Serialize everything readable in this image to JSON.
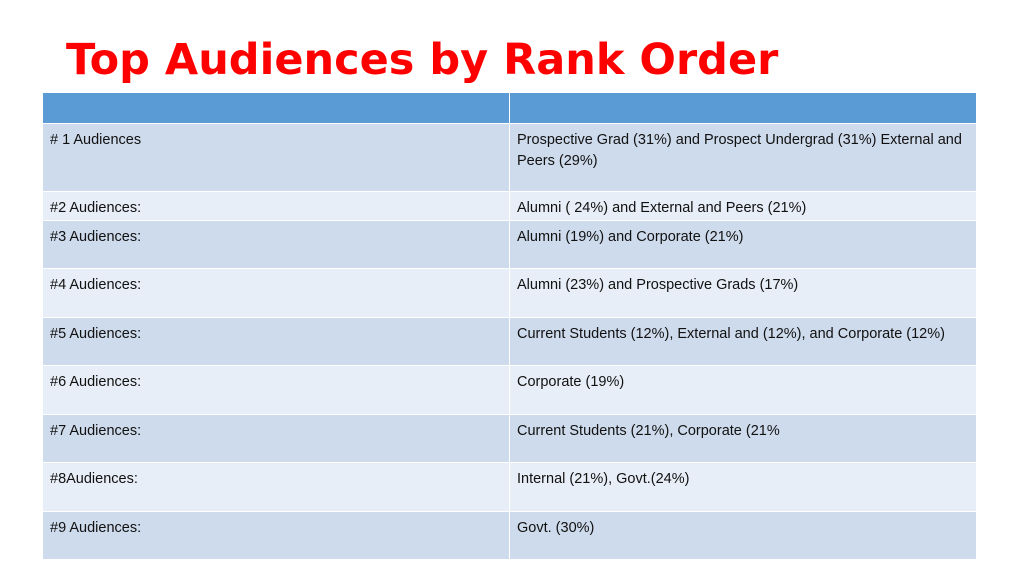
{
  "title": "Top Audiences by Rank Order",
  "table": {
    "headers": [
      "",
      ""
    ],
    "rows": [
      {
        "rank": "# 1 Audiences",
        "audiences": "Prospective Grad (31%) and Prospect Undergrad (31%) External and Peers (29%)"
      },
      {
        "rank": "#2 Audiences:",
        "audiences": "Alumni ( 24%) and External and Peers  (21%)"
      },
      {
        "rank": "#3 Audiences:",
        "audiences": "Alumni (19%) and Corporate (21%)"
      },
      {
        "rank": "#4 Audiences:",
        "audiences": "Alumni (23%) and Prospective Grads (17%)"
      },
      {
        "rank": "#5 Audiences:",
        "audiences": "Current Students (12%), External and  (12%), and Corporate (12%)"
      },
      {
        "rank": "#6 Audiences:",
        "audiences": "Corporate (19%)"
      },
      {
        "rank": "#7 Audiences:",
        "audiences": "Current Students (21%), Corporate (21%"
      },
      {
        "rank": "#8Audiences:",
        "audiences": "Internal (21%), Govt.(24%)"
      },
      {
        "rank": "#9 Audiences:",
        "audiences": "Govt. (30%)"
      }
    ]
  },
  "colors": {
    "title": "#ff0000",
    "header": "#5b9bd5",
    "row_dark": "#cedbec",
    "row_light": "#e8eef7"
  }
}
